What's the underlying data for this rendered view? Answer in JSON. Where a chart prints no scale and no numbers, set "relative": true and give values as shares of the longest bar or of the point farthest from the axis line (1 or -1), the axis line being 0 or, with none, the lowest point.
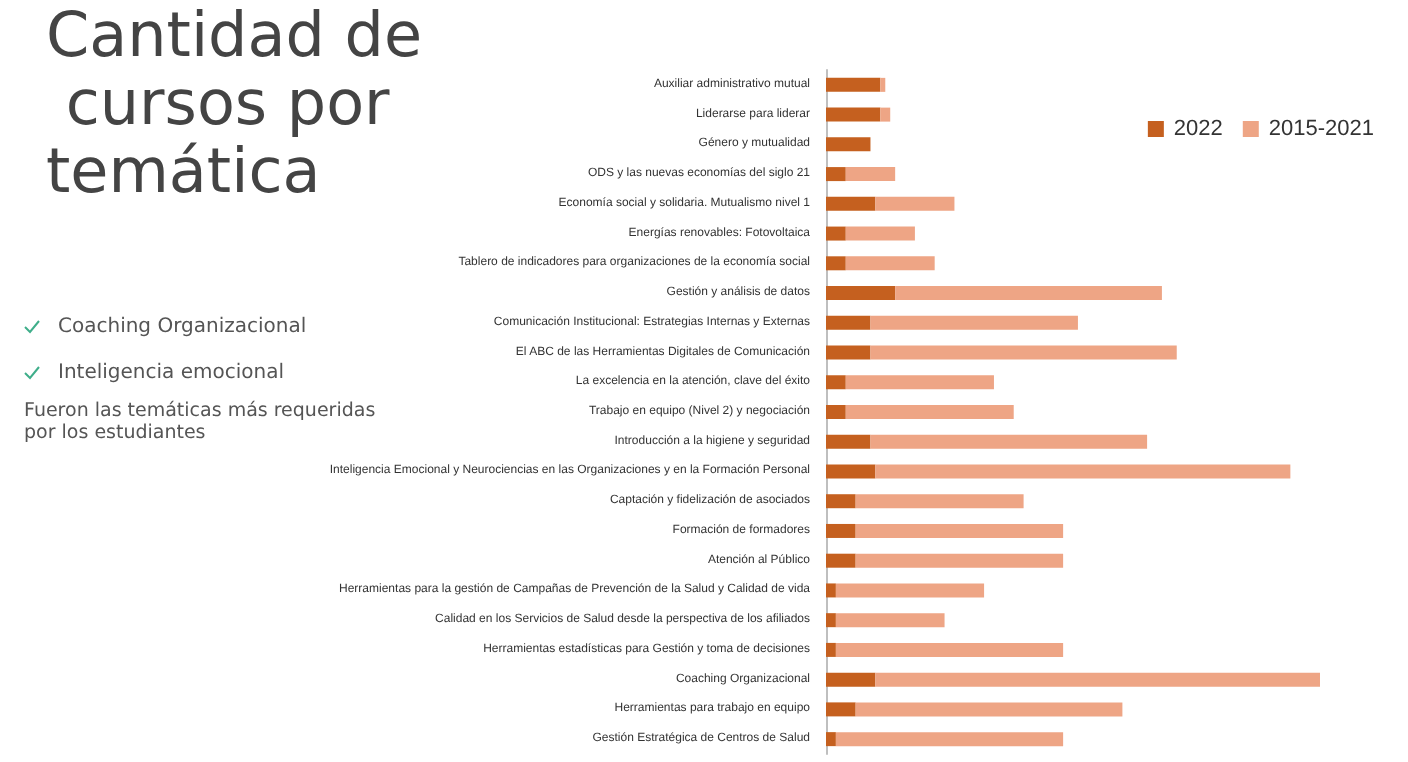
{
  "chart_data": {
    "type": "bar",
    "orientation": "horizontal",
    "stacked": true,
    "relative": true,
    "title": "Cantidad de cursos por temática",
    "annotations": [
      "Coaching Organizacional",
      "Inteligencia emocional",
      "Fueron las temáticas más requeridas por los estudiantes"
    ],
    "categories": [
      "Auxiliar administrativo mutual",
      "Liderarse para liderar",
      "Género y mutualidad",
      "ODS y las nuevas economías del siglo 21",
      "Economía social y solidaria. Mutualismo nivel 1",
      "Energías renovables: Fotovoltaica",
      "Tablero de indicadores para organizaciones de la economía social",
      "Gestión y análisis de datos",
      "Comunicación Institucional: Estrategias Internas y Externas",
      "El ABC de las Herramientas Digitales de Comunicación",
      "La excelencia en la atención, clave del éxito",
      "Trabajo en equipo (Nivel 2) y negociación",
      "Introducción a la higiene y seguridad",
      "Inteligencia Emocional y Neurociencias en las Organizaciones y en la Formación Personal",
      "Captación y fidelización de asociados",
      "Formación de formadores",
      "Atención al Público",
      "Herramientas para la gestión de Campañas de Prevención de la Salud y Calidad de vida",
      "Calidad en los Servicios de Salud desde la perspectiva de los afiliados",
      "Herramientas estadísticas para Gestión y toma de decisiones",
      "Coaching Organizacional",
      "Herramientas para trabajo en equipo",
      "Gestión Estratégica de Centros de Salud"
    ],
    "series": [
      {
        "name": "2022",
        "color": "#c5601f",
        "values": [
          0.11,
          0.11,
          0.09,
          0.04,
          0.1,
          0.04,
          0.04,
          0.14,
          0.09,
          0.09,
          0.04,
          0.04,
          0.09,
          0.1,
          0.06,
          0.06,
          0.06,
          0.02,
          0.02,
          0.02,
          0.1,
          0.06,
          0.02
        ]
      },
      {
        "name": "2015-2021",
        "color": "#eea585",
        "values": [
          0.01,
          0.02,
          0,
          0.1,
          0.16,
          0.14,
          0.18,
          0.54,
          0.42,
          0.62,
          0.3,
          0.34,
          0.56,
          0.84,
          0.34,
          0.42,
          0.42,
          0.3,
          0.22,
          0.46,
          0.9,
          0.54,
          0.46
        ]
      }
    ],
    "legend": "top right"
  }
}
